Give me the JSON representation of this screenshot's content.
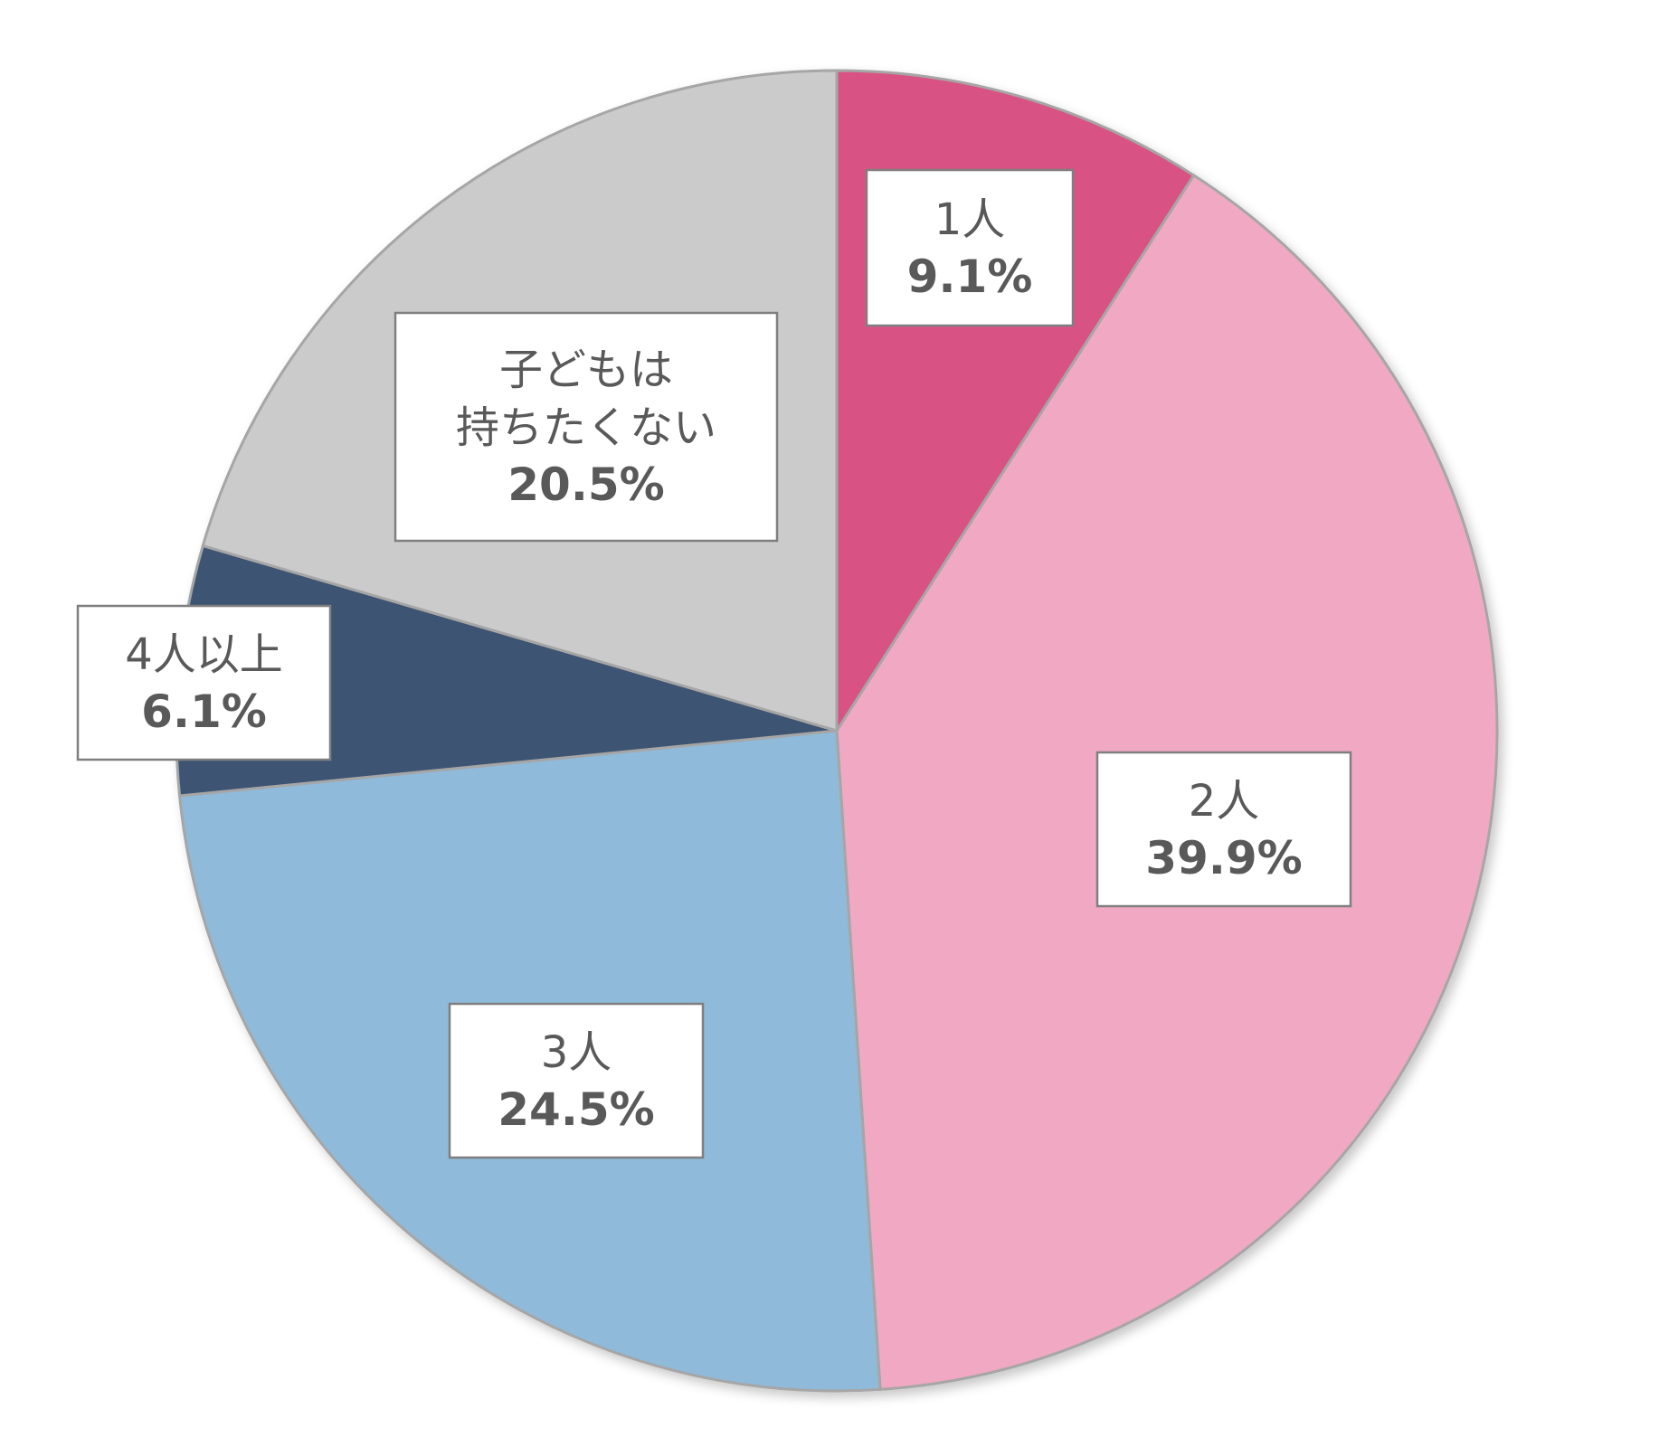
{
  "chart_data": {
    "type": "pie",
    "title": "",
    "start": "12 o'clock",
    "direction": "clockwise",
    "slices": [
      {
        "name": "1人",
        "label": "1人",
        "value": 9.1,
        "display": "9.1%",
        "color": "#d85383"
      },
      {
        "name": "2人",
        "label": "2人",
        "value": 39.9,
        "display": "39.9%",
        "color": "#f1a8c2"
      },
      {
        "name": "3人",
        "label": "3人",
        "value": 24.5,
        "display": "24.5%",
        "color": "#8fbada"
      },
      {
        "name": "4人以上",
        "label": "4人以上",
        "value": 6.1,
        "display": "6.1%",
        "color": "#3d5573"
      },
      {
        "name": "子どもは持ちたくない",
        "label": "子どもは\n持ちたくない",
        "value": 20.5,
        "display": "20.5%",
        "color": "#cbcbcb"
      }
    ]
  }
}
